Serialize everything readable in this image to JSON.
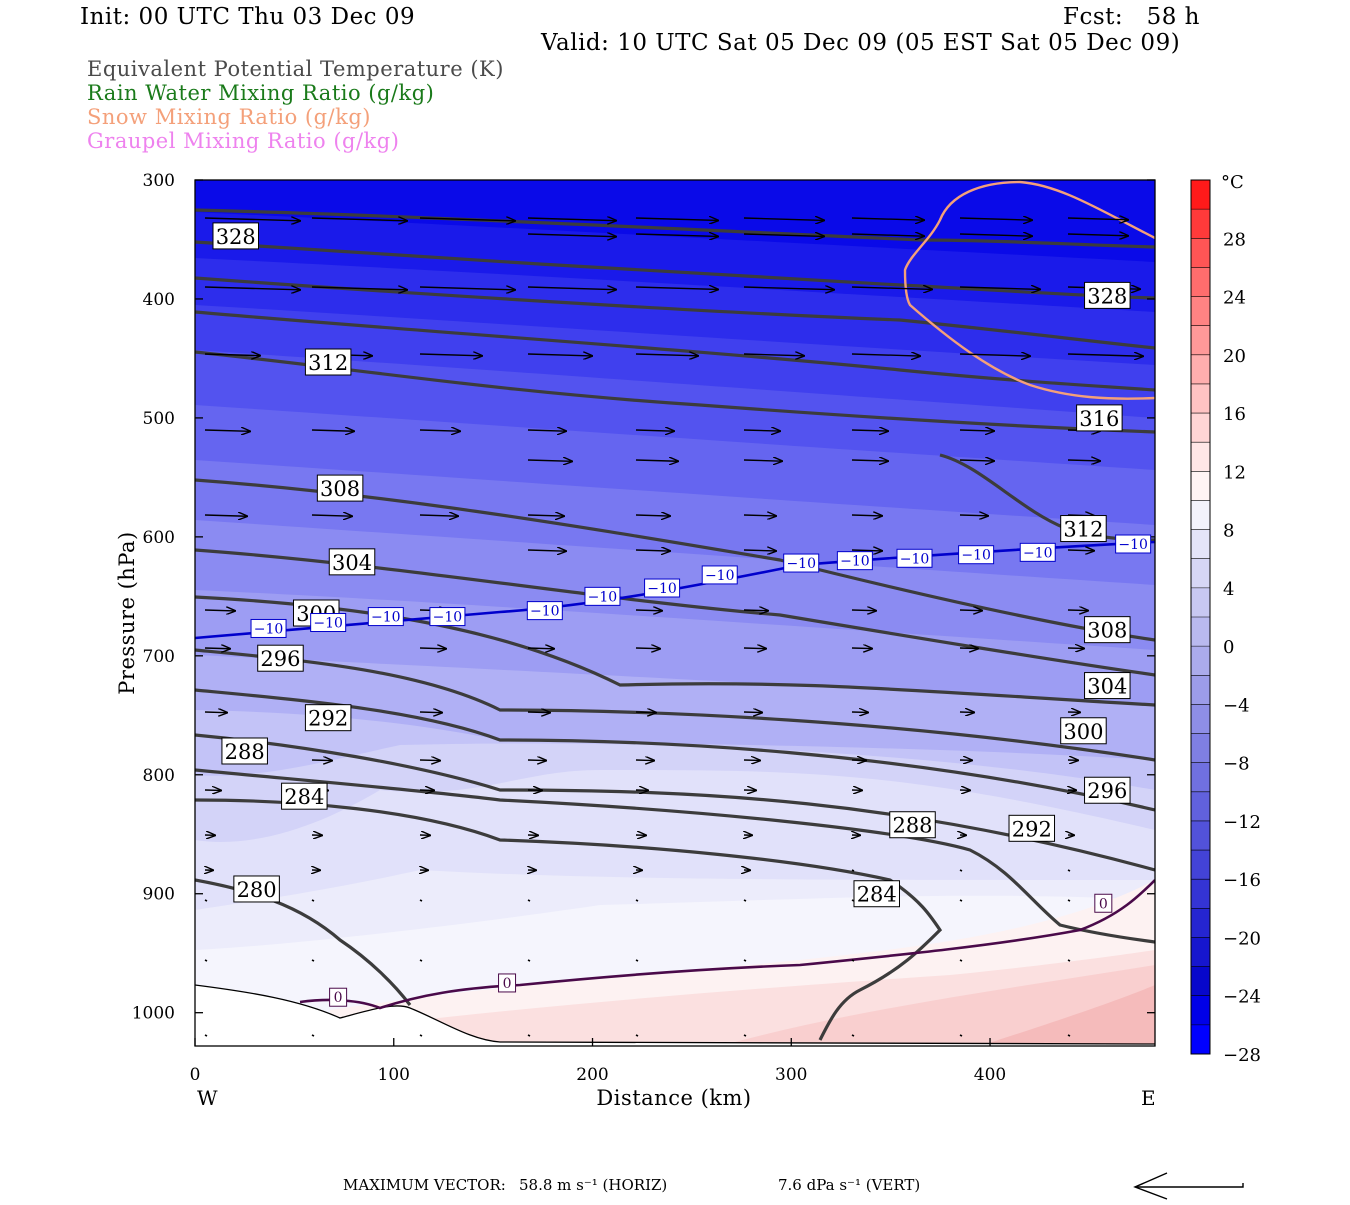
{
  "header": {
    "init": "Init: 00 UTC Thu 03 Dec 09",
    "fcst": "Fcst:   58 h",
    "valid": "Valid: 10 UTC Sat 05 Dec 09 (05 EST Sat 05 Dec 09)"
  },
  "legend": [
    {
      "text": "Equivalent Potential Temperature (K)",
      "color": "#4a4a4a"
    },
    {
      "text": "Rain Water Mixing Ratio (g/kg)",
      "color": "#1a7a1a"
    },
    {
      "text": "Snow Mixing Ratio (g/kg)",
      "color": "#f4a07a"
    },
    {
      "text": "Graupel Mixing Ratio (g/kg)",
      "color": "#ee82ee"
    }
  ],
  "footer": {
    "max_vector": "MAXIMUM VECTOR:",
    "horiz": "58.8 m s⁻¹ (HORIZ)",
    "vert": "7.6 dPa s⁻¹ (VERT)"
  },
  "chart_data": {
    "type": "cross-section",
    "xlabel": "Distance (km)",
    "ylabel": "Pressure (hPa)",
    "xlim": [
      0,
      483
    ],
    "ylim": [
      1028,
      300
    ],
    "x_ticks": [
      0,
      100,
      200,
      300,
      400
    ],
    "y_ticks": [
      300,
      400,
      500,
      600,
      700,
      800,
      900,
      1000
    ],
    "x_left_label": "W",
    "x_right_label": "E",
    "colorbar": {
      "unit": "°C",
      "tick_labels": [
        "28",
        "24",
        "20",
        "16",
        "12",
        "8",
        "4",
        "0",
        "−4",
        "−8",
        "−12",
        "−16",
        "−20",
        "−24",
        "−28"
      ],
      "bins": [
        "#ff1a1a",
        "#ff3a3a",
        "#ff5555",
        "#ff6d6d",
        "#ff8383",
        "#ff9999",
        "#ffaeae",
        "#ffc3c3",
        "#ffd5d5",
        "#ffe6e6",
        "#fff4f4",
        "#f3f3fb",
        "#e4e4f8",
        "#d6d6f5",
        "#c8c8f2",
        "#b9b9ef",
        "#ababec",
        "#9c9ce9",
        "#8e8ee6",
        "#7f7fe3",
        "#7070e0",
        "#6161dd",
        "#5252da",
        "#4343d7",
        "#3434d4",
        "#2525d1",
        "#1616ce",
        "#0707cb",
        "#0000e8",
        "#0000ff"
      ]
    },
    "theta_e_labels": [
      {
        "text": "328",
        "x": 20.5,
        "p": 347
      },
      {
        "text": "328",
        "x": 459,
        "p": 397
      },
      {
        "text": "312",
        "x": 67,
        "p": 453
      },
      {
        "text": "316",
        "x": 455,
        "p": 500
      },
      {
        "text": "308",
        "x": 73,
        "p": 559
      },
      {
        "text": "312",
        "x": 447,
        "p": 593
      },
      {
        "text": "304",
        "x": 79,
        "p": 621
      },
      {
        "text": "300",
        "x": 61,
        "p": 664
      },
      {
        "text": "308",
        "x": 459,
        "p": 678
      },
      {
        "text": "296",
        "x": 43,
        "p": 702
      },
      {
        "text": "304",
        "x": 459,
        "p": 725
      },
      {
        "text": "292",
        "x": 67,
        "p": 752
      },
      {
        "text": "300",
        "x": 447,
        "p": 763
      },
      {
        "text": "288",
        "x": 25,
        "p": 780
      },
      {
        "text": "296",
        "x": 459,
        "p": 813
      },
      {
        "text": "284",
        "x": 55,
        "p": 818
      },
      {
        "text": "288",
        "x": 361,
        "p": 842
      },
      {
        "text": "292",
        "x": 421,
        "p": 845
      },
      {
        "text": "284",
        "x": 343,
        "p": 900
      },
      {
        "text": "280",
        "x": 31,
        "p": 896
      }
    ],
    "temp_labels": [
      {
        "text": "−10",
        "x": 37,
        "p": 677
      },
      {
        "text": "−10",
        "x": 67,
        "p": 672
      },
      {
        "text": "−10",
        "x": 96,
        "p": 667
      },
      {
        "text": "−10",
        "x": 127,
        "p": 667
      },
      {
        "text": "−10",
        "x": 176,
        "p": 662
      },
      {
        "text": "−10",
        "x": 205,
        "p": 650
      },
      {
        "text": "−10",
        "x": 235,
        "p": 643
      },
      {
        "text": "−10",
        "x": 264,
        "p": 632
      },
      {
        "text": "−10",
        "x": 305,
        "p": 622
      },
      {
        "text": "−10",
        "x": 332,
        "p": 620
      },
      {
        "text": "−10",
        "x": 362,
        "p": 618
      },
      {
        "text": "−10",
        "x": 393,
        "p": 615
      },
      {
        "text": "−10",
        "x": 424,
        "p": 613
      },
      {
        "text": "−10",
        "x": 472,
        "p": 606
      },
      {
        "text": "0",
        "x": 72,
        "p": 987
      },
      {
        "text": "0",
        "x": 157,
        "p": 975
      },
      {
        "text": "0",
        "x": 457,
        "p": 908
      }
    ]
  }
}
